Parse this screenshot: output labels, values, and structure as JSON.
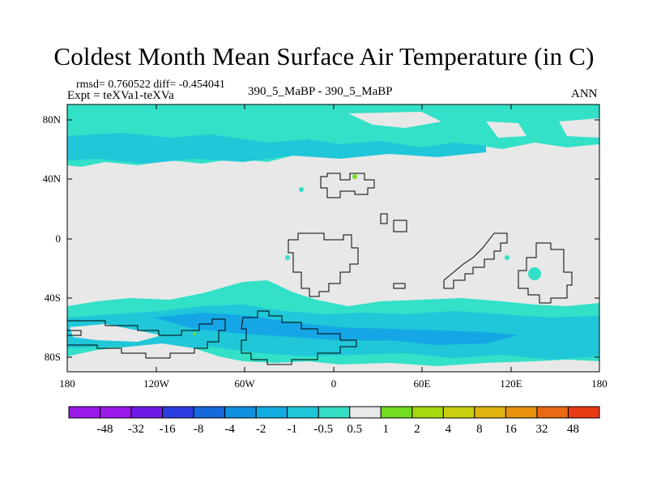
{
  "title": "Coldest Month Mean Surface Air Temperature (in C)",
  "stats": "rmsd= 0.760522 diff= -0.454041",
  "experiment": "Expt = teXVa1-teXVa",
  "run": "390_5_MaBP - 390_5_MaBP",
  "season": "ANN",
  "map": {
    "lon_ticks": [
      "180",
      "120W",
      "60W",
      "0",
      "60E",
      "120E",
      "180"
    ],
    "lat_ticks": [
      "80N",
      "40N",
      "0",
      "40S",
      "80S"
    ],
    "colors": {
      "land_grey": "#e8e8e8",
      "light_cyan": "#33e0c8",
      "mid_cyan": "#1fc7d8",
      "blue_cyan": "#15a6e6",
      "coast": "#000000"
    }
  },
  "colorbar": {
    "labels": [
      "-48",
      "-32",
      "-16",
      "-8",
      "-4",
      "-2",
      "-1",
      "-0.5",
      "0.5",
      "1",
      "2",
      "4",
      "8",
      "16",
      "32",
      "48"
    ],
    "colors": [
      "#9a18e8",
      "#6f1ae6",
      "#2b3ce0",
      "#1469dc",
      "#0f91e0",
      "#12abe0",
      "#1ec6d8",
      "#33ddc3",
      "#e8e8e8",
      "#72dc20",
      "#a6d80f",
      "#c9cf0f",
      "#e0b40f",
      "#e8920f",
      "#ea6812",
      "#e93a14"
    ]
  }
}
